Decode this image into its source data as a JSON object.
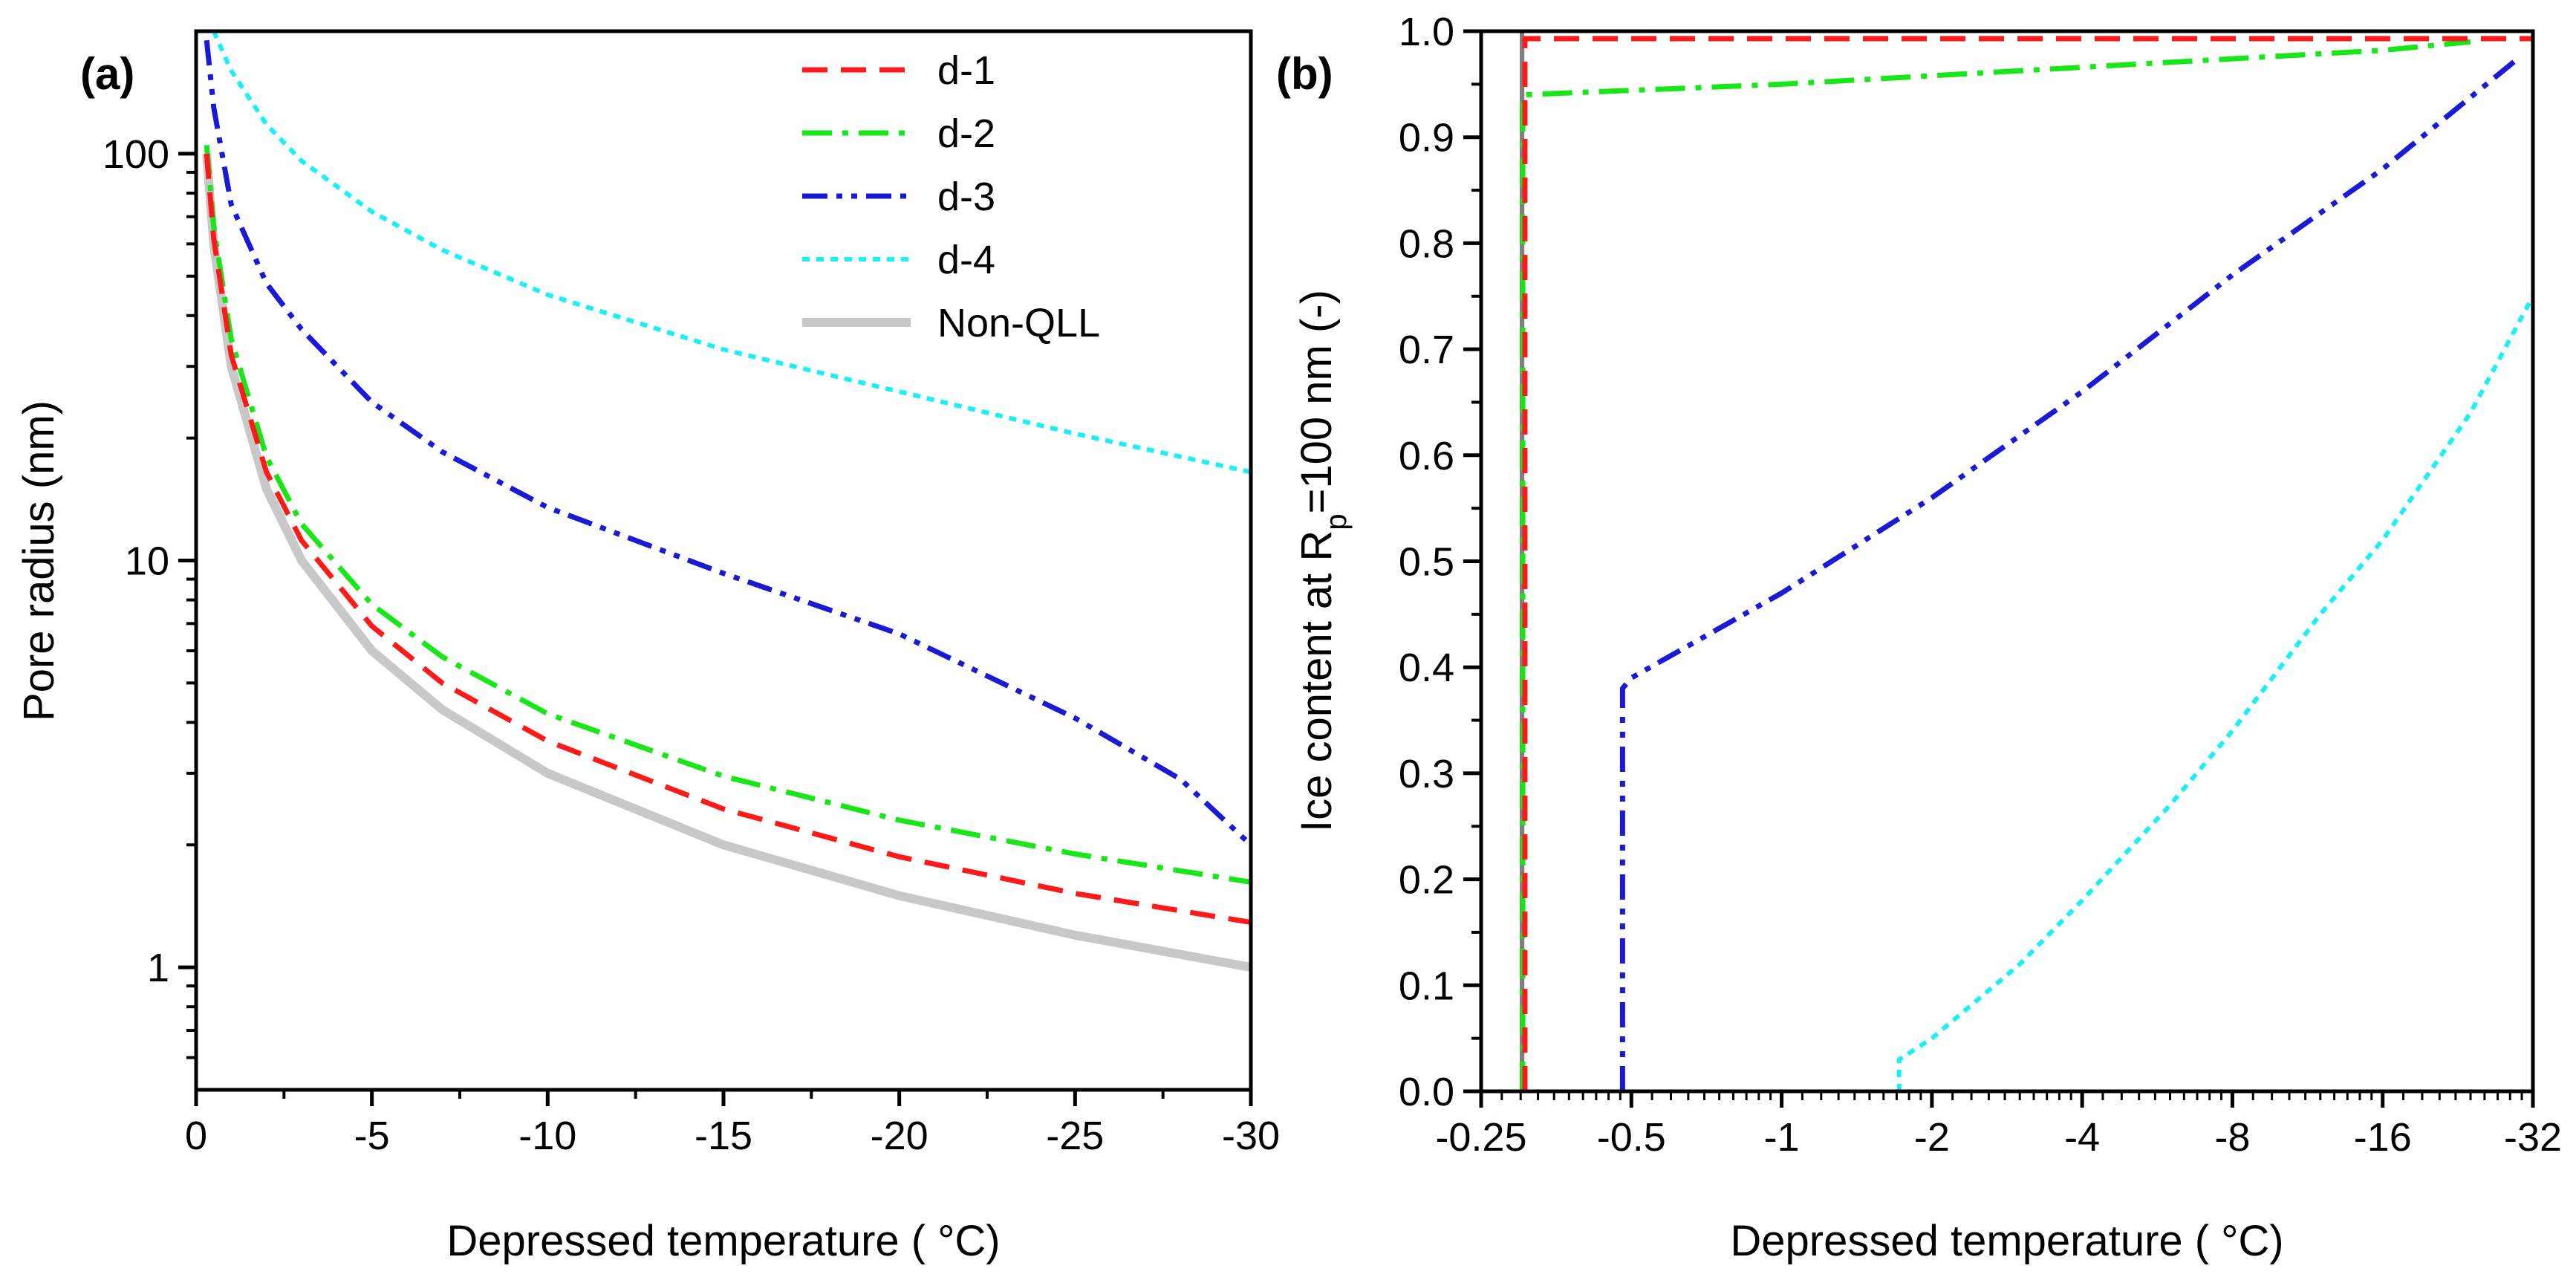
{
  "figure": {
    "panel_a_label": "(a)",
    "panel_b_label": "(b)"
  },
  "colors": {
    "d-1": "#ff1a1a",
    "d-2": "#17e617",
    "d-3": "#1a1ad6",
    "d-4": "#19f0f5",
    "Non-QLL": "#c8c8c8",
    "Non-QLL_b": "#7f7f7f"
  },
  "chart_data": [
    {
      "panel": "(a)",
      "type": "line",
      "xlabel": "Depressed temperature ( °C)",
      "ylabel": "Pore radius (nm)",
      "xlim": [
        0,
        -30
      ],
      "ylim": [
        0.5,
        200
      ],
      "yscale": "log",
      "x_ticks": [
        0,
        -5,
        -10,
        -15,
        -20,
        -25,
        -30
      ],
      "x_tick_labels": [
        "0",
        "-5",
        "-10",
        "-15",
        "-20",
        "-25",
        "-30"
      ],
      "y_ticks": [
        1,
        10,
        100
      ],
      "y_tick_labels": [
        "1",
        "10",
        "100"
      ],
      "legend_position": "top-right",
      "grid": false,
      "series": [
        {
          "name": "d-1",
          "style": "dashed",
          "points": [
            [
              -0.3,
              100
            ],
            [
              -0.5,
              62
            ],
            [
              -1,
              32
            ],
            [
              -2,
              16.5
            ],
            [
              -3,
              11.2
            ],
            [
              -5,
              6.9
            ],
            [
              -7,
              5.0
            ],
            [
              -10,
              3.6
            ],
            [
              -15,
              2.45
            ],
            [
              -20,
              1.87
            ],
            [
              -25,
              1.52
            ],
            [
              -30,
              1.29
            ]
          ]
        },
        {
          "name": "d-2",
          "style": "dashdot",
          "points": [
            [
              -0.3,
              105
            ],
            [
              -0.5,
              66
            ],
            [
              -1,
              35
            ],
            [
              -2,
              18
            ],
            [
              -3,
              12.3
            ],
            [
              -5,
              7.8
            ],
            [
              -7,
              5.8
            ],
            [
              -10,
              4.2
            ],
            [
              -15,
              2.95
            ],
            [
              -20,
              2.3
            ],
            [
              -25,
              1.9
            ],
            [
              -30,
              1.62
            ]
          ]
        },
        {
          "name": "d-3",
          "style": "dashdotdot",
          "points": [
            [
              -0.3,
              190
            ],
            [
              -0.5,
              130
            ],
            [
              -1,
              75
            ],
            [
              -2,
              48
            ],
            [
              -3,
              37
            ],
            [
              -5,
              24.5
            ],
            [
              -7,
              18.5
            ],
            [
              -10,
              13.5
            ],
            [
              -15,
              9.3
            ],
            [
              -20,
              6.6
            ],
            [
              -25,
              4.1
            ],
            [
              -28,
              2.9
            ],
            [
              -30,
              2.0
            ]
          ]
        },
        {
          "name": "d-4",
          "style": "dotted",
          "points": [
            [
              -0.5,
              200
            ],
            [
              -1,
              160
            ],
            [
              -2,
              118
            ],
            [
              -3,
              96
            ],
            [
              -5,
              72
            ],
            [
              -7,
              58
            ],
            [
              -10,
              45
            ],
            [
              -15,
              33
            ],
            [
              -20,
              26
            ],
            [
              -25,
              20.5
            ],
            [
              -30,
              16.5
            ]
          ]
        },
        {
          "name": "Non-QLL",
          "style": "solid",
          "points": [
            [
              -0.3,
              100
            ],
            [
              -0.5,
              60
            ],
            [
              -1,
              30
            ],
            [
              -2,
              15
            ],
            [
              -3,
              10
            ],
            [
              -5,
              6.0
            ],
            [
              -7,
              4.3
            ],
            [
              -10,
              3.0
            ],
            [
              -15,
              2.0
            ],
            [
              -20,
              1.5
            ],
            [
              -25,
              1.2
            ],
            [
              -30,
              1.0
            ]
          ]
        }
      ]
    },
    {
      "panel": "(b)",
      "type": "line",
      "xlabel": "Depressed temperature ( °C)",
      "ylabel_main": "Ice content at R",
      "ylabel_sub": "p",
      "ylabel_rest": "=100 nm (-)",
      "xscale": "log2",
      "xlim": [
        -0.25,
        -32
      ],
      "ylim": [
        0,
        1
      ],
      "x_ticks": [
        -0.25,
        -0.5,
        -1,
        -2,
        -4,
        -8,
        -16,
        -32
      ],
      "x_tick_labels": [
        "-0.25",
        "-0.5",
        "-1",
        "-2",
        "-4",
        "-8",
        "-16",
        "-32"
      ],
      "y_ticks": [
        0,
        0.1,
        0.2,
        0.3,
        0.4,
        0.5,
        0.6,
        0.7,
        0.8,
        0.9,
        1.0
      ],
      "y_tick_labels": [
        "0.0",
        "0.1",
        "0.2",
        "0.3",
        "0.4",
        "0.5",
        "0.6",
        "0.7",
        "0.8",
        "0.9",
        "1.0"
      ],
      "grid": false,
      "series": [
        {
          "name": "Non-QLL",
          "style": "solid",
          "points": [
            [
              -0.3,
              0
            ],
            [
              -0.3,
              1.0
            ]
          ]
        },
        {
          "name": "d-2",
          "style": "dashdot",
          "points": [
            [
              -0.303,
              0
            ],
            [
              -0.303,
              0.94
            ],
            [
              -1,
              0.95
            ],
            [
              -4,
              0.966
            ],
            [
              -16,
              0.982
            ],
            [
              -24,
              0.99
            ]
          ]
        },
        {
          "name": "d-1",
          "style": "dashed",
          "points": [
            [
              -0.306,
              0
            ],
            [
              -0.306,
              0.993
            ],
            [
              -32,
              0.993
            ]
          ]
        },
        {
          "name": "d-3",
          "style": "dashdotdot",
          "points": [
            [
              -0.48,
              0
            ],
            [
              -0.48,
              0.38
            ],
            [
              -0.5,
              0.39
            ],
            [
              -1,
              0.47
            ],
            [
              -2,
              0.56
            ],
            [
              -4,
              0.66
            ],
            [
              -8,
              0.77
            ],
            [
              -16,
              0.87
            ],
            [
              -30,
              0.975
            ]
          ]
        },
        {
          "name": "d-4",
          "style": "dotted",
          "points": [
            [
              -1.72,
              0
            ],
            [
              -1.72,
              0.03
            ],
            [
              -2,
              0.05
            ],
            [
              -3,
              0.12
            ],
            [
              -4,
              0.18
            ],
            [
              -6,
              0.27
            ],
            [
              -8,
              0.34
            ],
            [
              -12,
              0.45
            ],
            [
              -16,
              0.52
            ],
            [
              -24,
              0.64
            ],
            [
              -32,
              0.75
            ]
          ]
        }
      ]
    }
  ]
}
